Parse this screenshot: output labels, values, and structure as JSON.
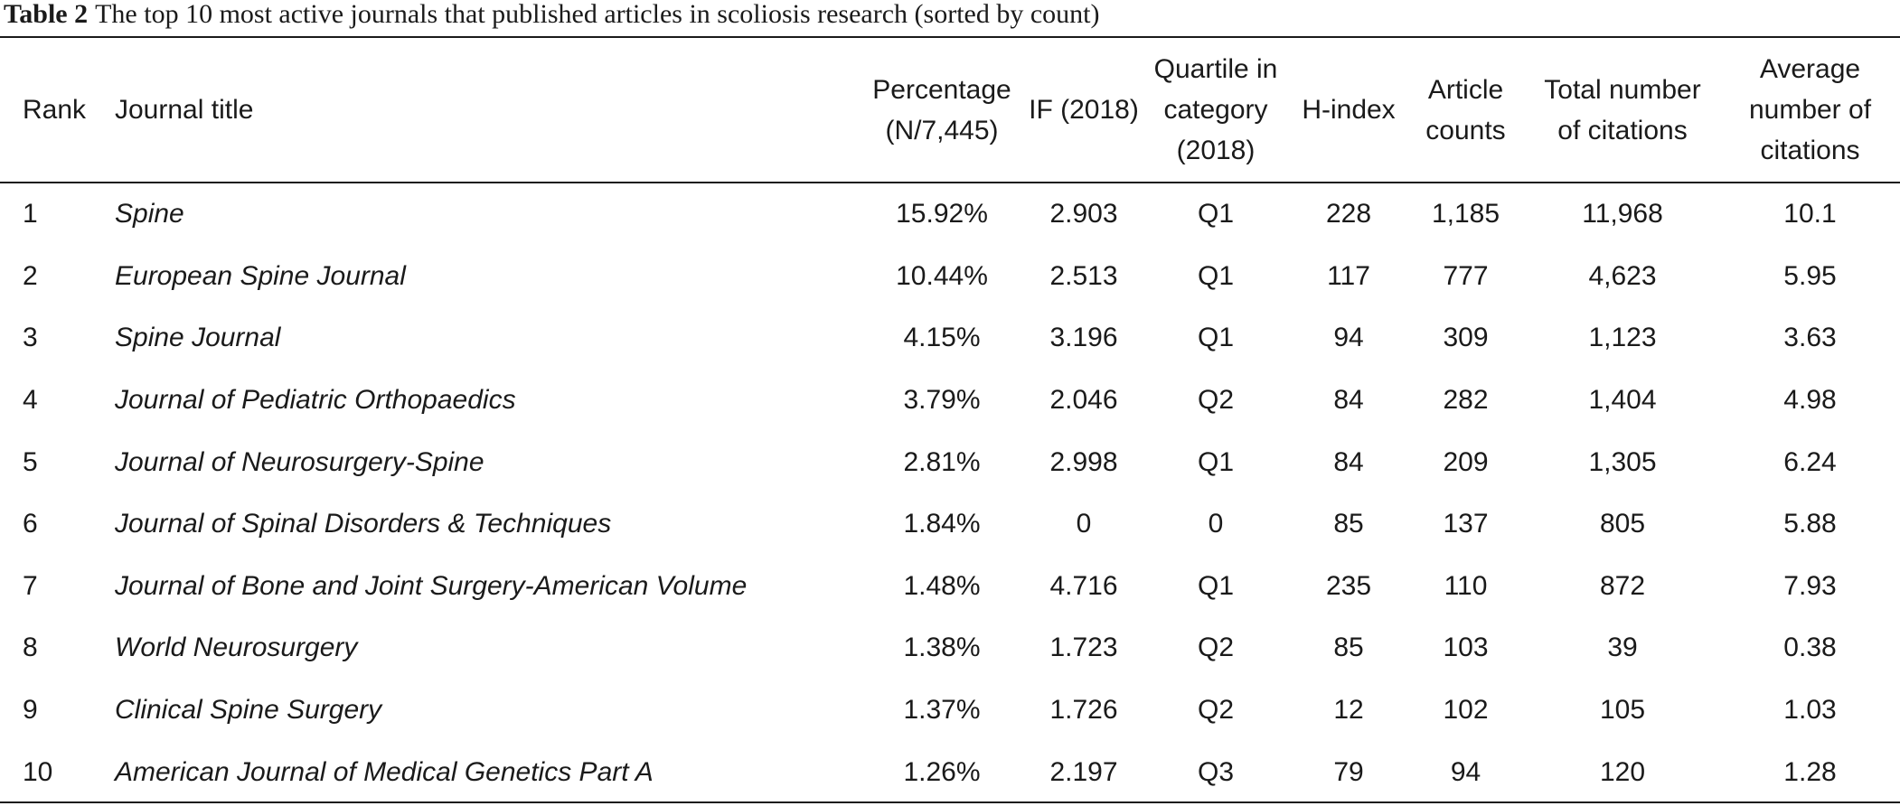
{
  "caption": {
    "label": "Table 2",
    "text": "The top 10 most active journals that published articles in scoliosis research (sorted by count)"
  },
  "table": {
    "headers": {
      "rank": "Rank",
      "journal_title": "Journal title",
      "percentage": [
        "Percentage",
        "(N/7,445)"
      ],
      "if_2018": "IF (2018)",
      "quartile": [
        "Quartile in",
        "category",
        "(2018)"
      ],
      "h_index": "H-index",
      "article_counts": [
        "Article",
        "counts"
      ],
      "total_citations": [
        "Total number",
        "of citations"
      ],
      "avg_citations": [
        "Average",
        "number of",
        "citations"
      ]
    },
    "rows": [
      {
        "rank": "1",
        "journal": "Spine",
        "percentage": "15.92%",
        "if": "2.903",
        "quartile": "Q1",
        "h_index": "228",
        "articles": "1,185",
        "citations": "11,968",
        "avg": "10.1"
      },
      {
        "rank": "2",
        "journal": "European Spine Journal",
        "percentage": "10.44%",
        "if": "2.513",
        "quartile": "Q1",
        "h_index": "117",
        "articles": "777",
        "citations": "4,623",
        "avg": "5.95"
      },
      {
        "rank": "3",
        "journal": "Spine Journal",
        "percentage": "4.15%",
        "if": "3.196",
        "quartile": "Q1",
        "h_index": "94",
        "articles": "309",
        "citations": "1,123",
        "avg": "3.63"
      },
      {
        "rank": "4",
        "journal": "Journal of Pediatric Orthopaedics",
        "percentage": "3.79%",
        "if": "2.046",
        "quartile": "Q2",
        "h_index": "84",
        "articles": "282",
        "citations": "1,404",
        "avg": "4.98"
      },
      {
        "rank": "5",
        "journal": "Journal of Neurosurgery-Spine",
        "percentage": "2.81%",
        "if": "2.998",
        "quartile": "Q1",
        "h_index": "84",
        "articles": "209",
        "citations": "1,305",
        "avg": "6.24"
      },
      {
        "rank": "6",
        "journal": "Journal of Spinal Disorders & Techniques",
        "percentage": "1.84%",
        "if": "0",
        "quartile": "0",
        "h_index": "85",
        "articles": "137",
        "citations": "805",
        "avg": "5.88"
      },
      {
        "rank": "7",
        "journal": "Journal of Bone and Joint Surgery-American Volume",
        "percentage": "1.48%",
        "if": "4.716",
        "quartile": "Q1",
        "h_index": "235",
        "articles": "110",
        "citations": "872",
        "avg": "7.93"
      },
      {
        "rank": "8",
        "journal": "World Neurosurgery",
        "percentage": "1.38%",
        "if": "1.723",
        "quartile": "Q2",
        "h_index": "85",
        "articles": "103",
        "citations": "39",
        "avg": "0.38"
      },
      {
        "rank": "9",
        "journal": "Clinical Spine Surgery",
        "percentage": "1.37%",
        "if": "1.726",
        "quartile": "Q2",
        "h_index": "12",
        "articles": "102",
        "citations": "105",
        "avg": "1.03"
      },
      {
        "rank": "10",
        "journal": "American Journal of Medical Genetics Part A",
        "percentage": "1.26%",
        "if": "2.197",
        "quartile": "Q3",
        "h_index": "79",
        "articles": "94",
        "citations": "120",
        "avg": "1.28"
      }
    ]
  }
}
